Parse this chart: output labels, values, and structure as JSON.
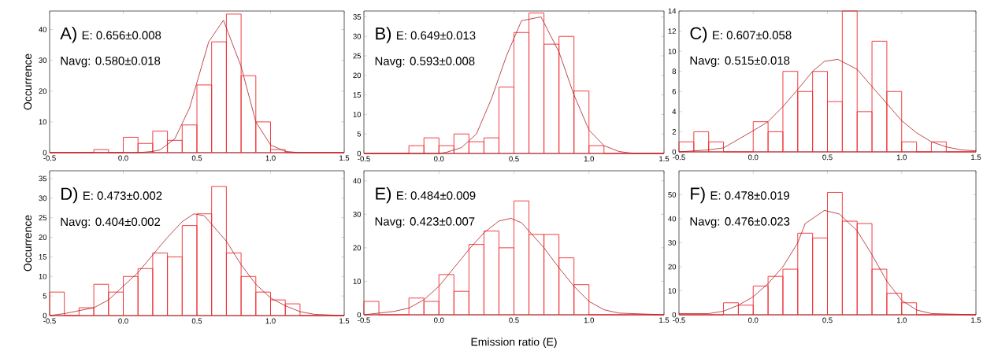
{
  "chart_data": [
    {
      "type": "histogram",
      "ylabel": "Occurrence",
      "annotations": [
        "A)",
        "E: 0.656±0.008",
        "Navg: 0.580±0.018"
      ],
      "xlim": [
        -0.5,
        1.5
      ],
      "ylim": [
        0,
        46
      ],
      "xticks": [
        {
          "value": -0.5,
          "label": "-0.5"
        },
        {
          "value": 0,
          "label": "0.0"
        },
        {
          "value": 0.5,
          "label": "0.5"
        },
        {
          "value": 1,
          "label": "1.0"
        },
        {
          "value": 1.5,
          "label": "1.5"
        }
      ],
      "yticks": [
        0,
        10,
        20,
        30,
        40
      ],
      "color": "#ee2a30",
      "bins": [
        -0.5,
        -0.4,
        -0.3,
        -0.2,
        -0.1,
        0,
        0.1,
        0.2,
        0.3,
        0.4,
        0.5,
        0.6,
        0.7,
        0.8,
        0.9,
        1.0,
        1.1,
        1.2,
        1.3,
        1.4,
        1.5
      ],
      "values": [
        0,
        0,
        0,
        1,
        0,
        5,
        3,
        7,
        4,
        9,
        22,
        36,
        45,
        25,
        10,
        1,
        0,
        0,
        0,
        0
      ],
      "series": [
        {
          "type": "line",
          "color": "#b01c22",
          "x": [
            -0.5,
            0.1,
            0.2,
            0.25,
            0.35,
            0.45,
            0.58,
            0.68,
            0.8,
            0.9,
            1.0,
            1.1,
            1.2,
            1.5
          ],
          "values": [
            0,
            0,
            0.4,
            0.9,
            4.5,
            14.5,
            36,
            43,
            28,
            10,
            2.5,
            0.4,
            0,
            0
          ]
        }
      ]
    },
    {
      "type": "histogram",
      "annotations": [
        "B)",
        "E: 0.649±0.013",
        "Navg: 0.593±0.008"
      ],
      "xlim": [
        -0.5,
        1.5
      ],
      "ylim": [
        0,
        36.5
      ],
      "xticks": [
        {
          "value": -0.5,
          "label": "-0.5"
        },
        {
          "value": 0,
          "label": "0.0"
        },
        {
          "value": 0.5,
          "label": "0.5"
        },
        {
          "value": 1,
          "label": "1.0"
        },
        {
          "value": 1.5,
          "label": "1.5"
        }
      ],
      "yticks": [
        0,
        5,
        10,
        15,
        20,
        25,
        30,
        35
      ],
      "color": "#ee2a30",
      "bins": [
        -0.5,
        -0.4,
        -0.3,
        -0.2,
        -0.1,
        0,
        0.1,
        0.2,
        0.3,
        0.4,
        0.5,
        0.6,
        0.7,
        0.8,
        0.9,
        1.0,
        1.1,
        1.2,
        1.3,
        1.4,
        1.5
      ],
      "values": [
        0,
        0,
        0,
        2,
        4,
        2,
        5,
        3,
        4,
        17,
        31,
        36,
        28,
        30,
        16,
        2,
        0,
        0,
        0,
        0
      ],
      "series": [
        {
          "type": "line",
          "color": "#b01c22",
          "x": [
            -0.5,
            0,
            0.05,
            0.15,
            0.25,
            0.35,
            0.45,
            0.55,
            0.68,
            0.8,
            0.9,
            1.0,
            1.1,
            1.2,
            1.3,
            1.5
          ],
          "values": [
            0,
            0,
            0.3,
            1.5,
            5,
            14,
            25,
            34,
            35,
            26,
            15,
            6,
            2,
            0.5,
            0,
            0
          ]
        }
      ]
    },
    {
      "type": "histogram",
      "annotations": [
        "C)",
        "E: 0.607±0.058",
        "Navg: 0.515±0.018"
      ],
      "xlim": [
        -0.5,
        1.5
      ],
      "ylim": [
        0,
        14
      ],
      "xticks": [
        {
          "value": -0.5,
          "label": "-0.5"
        },
        {
          "value": 0,
          "label": "0.0"
        },
        {
          "value": 0.5,
          "label": "0.5"
        },
        {
          "value": 1,
          "label": "1.0"
        },
        {
          "value": 1.5,
          "label": "1.5"
        }
      ],
      "yticks": [
        0,
        2,
        4,
        6,
        8,
        10,
        12,
        14
      ],
      "color": "#ee2a30",
      "bins": [
        -0.5,
        -0.4,
        -0.3,
        -0.2,
        -0.1,
        0,
        0.1,
        0.2,
        0.3,
        0.4,
        0.5,
        0.6,
        0.7,
        0.8,
        0.9,
        1.0,
        1.1,
        1.2,
        1.3,
        1.4,
        1.5
      ],
      "values": [
        1,
        2,
        1,
        0,
        0,
        3,
        2,
        8,
        6,
        8,
        5,
        14,
        4,
        11,
        6,
        1,
        0,
        1,
        0,
        0
      ],
      "series": [
        {
          "type": "line",
          "color": "#b01c22",
          "x": [
            -0.5,
            -0.3,
            -0.2,
            0,
            0.1,
            0.2,
            0.3,
            0.4,
            0.48,
            0.57,
            0.7,
            0.8,
            0.9,
            1.0,
            1.1,
            1.2,
            1.3,
            1.4,
            1.5
          ],
          "values": [
            0,
            0.2,
            0.4,
            2.1,
            3,
            4.5,
            6.2,
            8,
            9,
            9.2,
            8.2,
            6.5,
            4.8,
            3.1,
            1.9,
            1,
            0.5,
            0.2,
            0.1
          ]
        }
      ]
    },
    {
      "type": "histogram",
      "ylabel": "Occurrence",
      "annotations": [
        "D)",
        "E: 0.473±0.002",
        "Navg: 0.404±0.002"
      ],
      "xlim": [
        -0.5,
        1.5
      ],
      "ylim": [
        0,
        37
      ],
      "xticks": [
        {
          "value": -0.5,
          "label": "-0.5"
        },
        {
          "value": 0,
          "label": "0.0"
        },
        {
          "value": 0.5,
          "label": "0.5"
        },
        {
          "value": 1,
          "label": "1.0"
        },
        {
          "value": 1.5,
          "label": "1.5"
        }
      ],
      "yticks": [
        0,
        5,
        10,
        15,
        20,
        25,
        30,
        35
      ],
      "color": "#ee2a30",
      "bins": [
        -0.5,
        -0.4,
        -0.3,
        -0.2,
        -0.1,
        0,
        0.1,
        0.2,
        0.3,
        0.4,
        0.5,
        0.6,
        0.7,
        0.8,
        0.9,
        1.0,
        1.1,
        1.2,
        1.3,
        1.4,
        1.5
      ],
      "values": [
        6,
        0,
        2,
        8,
        6,
        10,
        12,
        16,
        15,
        23,
        26,
        33,
        16,
        10,
        6,
        4,
        3,
        0,
        0,
        0
      ],
      "series": [
        {
          "type": "line",
          "color": "#b01c22",
          "x": [
            -0.5,
            -0.4,
            -0.2,
            -0.1,
            0,
            0.1,
            0.2,
            0.3,
            0.4,
            0.48,
            0.55,
            0.7,
            0.8,
            0.9,
            1.0,
            1.1,
            1.2,
            1.3,
            1.5
          ],
          "values": [
            0,
            0.5,
            2,
            4,
            7.5,
            11,
            15.5,
            20,
            24,
            26,
            25.5,
            19,
            13,
            8,
            4.5,
            2.5,
            1,
            0.3,
            0
          ]
        }
      ]
    },
    {
      "type": "histogram",
      "xlabel": "Emission ratio (E)",
      "annotations": [
        "E)",
        "E: 0.484±0.009",
        "Navg: 0.423±0.007"
      ],
      "xlim": [
        -0.5,
        1.5
      ],
      "ylim": [
        0,
        43
      ],
      "xticks": [
        {
          "value": -0.5,
          "label": "-0.5"
        },
        {
          "value": 0,
          "label": "0.0"
        },
        {
          "value": 0.5,
          "label": "0.5"
        },
        {
          "value": 1,
          "label": "1.0"
        },
        {
          "value": 1.5,
          "label": "1.5"
        }
      ],
      "yticks": [
        0,
        10,
        20,
        30,
        40
      ],
      "color": "#ee2a30",
      "bins": [
        -0.5,
        -0.4,
        -0.3,
        -0.2,
        -0.1,
        0,
        0.1,
        0.2,
        0.3,
        0.4,
        0.5,
        0.6,
        0.7,
        0.8,
        0.9,
        1.0,
        1.1,
        1.2,
        1.3,
        1.4,
        1.5
      ],
      "values": [
        4,
        0,
        0,
        5,
        4,
        12,
        7,
        21,
        25,
        20,
        34,
        24,
        24,
        17,
        9,
        0,
        0,
        0,
        0,
        0
      ],
      "series": [
        {
          "type": "line",
          "color": "#b01c22",
          "x": [
            -0.5,
            -0.3,
            -0.2,
            -0.1,
            0,
            0.1,
            0.2,
            0.3,
            0.4,
            0.48,
            0.55,
            0.7,
            0.8,
            0.9,
            1.0,
            1.1,
            1.2,
            1.5
          ],
          "values": [
            0,
            1,
            2,
            4.5,
            8.5,
            14,
            19.5,
            24.5,
            28,
            28.8,
            27.5,
            20,
            14,
            8.5,
            4,
            1.5,
            0.5,
            0
          ]
        }
      ]
    },
    {
      "type": "histogram",
      "annotations": [
        "F)",
        "E: 0.478±0.019",
        "Navg: 0.476±0.023"
      ],
      "xlim": [
        -0.5,
        1.5
      ],
      "ylim": [
        0,
        60
      ],
      "xticks": [
        {
          "value": -0.5,
          "label": "-0.5"
        },
        {
          "value": 0,
          "label": "0.0"
        },
        {
          "value": 0.5,
          "label": "0.5"
        },
        {
          "value": 1,
          "label": "1.0"
        },
        {
          "value": 1.5,
          "label": "1.5"
        }
      ],
      "yticks": [
        0,
        10,
        20,
        30,
        40,
        50
      ],
      "color": "#ee2a30",
      "bins": [
        -0.5,
        -0.4,
        -0.3,
        -0.2,
        -0.1,
        0,
        0.1,
        0.2,
        0.3,
        0.4,
        0.5,
        0.6,
        0.7,
        0.8,
        0.9,
        1.0,
        1.1,
        1.2,
        1.3,
        1.4,
        1.5
      ],
      "values": [
        0,
        0,
        0,
        5,
        4,
        12,
        16,
        19,
        34,
        32,
        51,
        39,
        38,
        19,
        9,
        5,
        0,
        0,
        0,
        0
      ],
      "series": [
        {
          "type": "line",
          "color": "#b01c22",
          "x": [
            -0.5,
            -0.3,
            -0.2,
            -0.1,
            0,
            0.1,
            0.2,
            0.3,
            0.35,
            0.48,
            0.58,
            0.7,
            0.8,
            0.9,
            1.0,
            1.1,
            1.2,
            1.5
          ],
          "values": [
            0.5,
            0.5,
            1.5,
            4,
            7.5,
            13,
            20,
            30,
            38,
            43.5,
            42,
            35,
            25,
            14,
            6,
            2,
            0.5,
            0
          ]
        }
      ]
    }
  ]
}
